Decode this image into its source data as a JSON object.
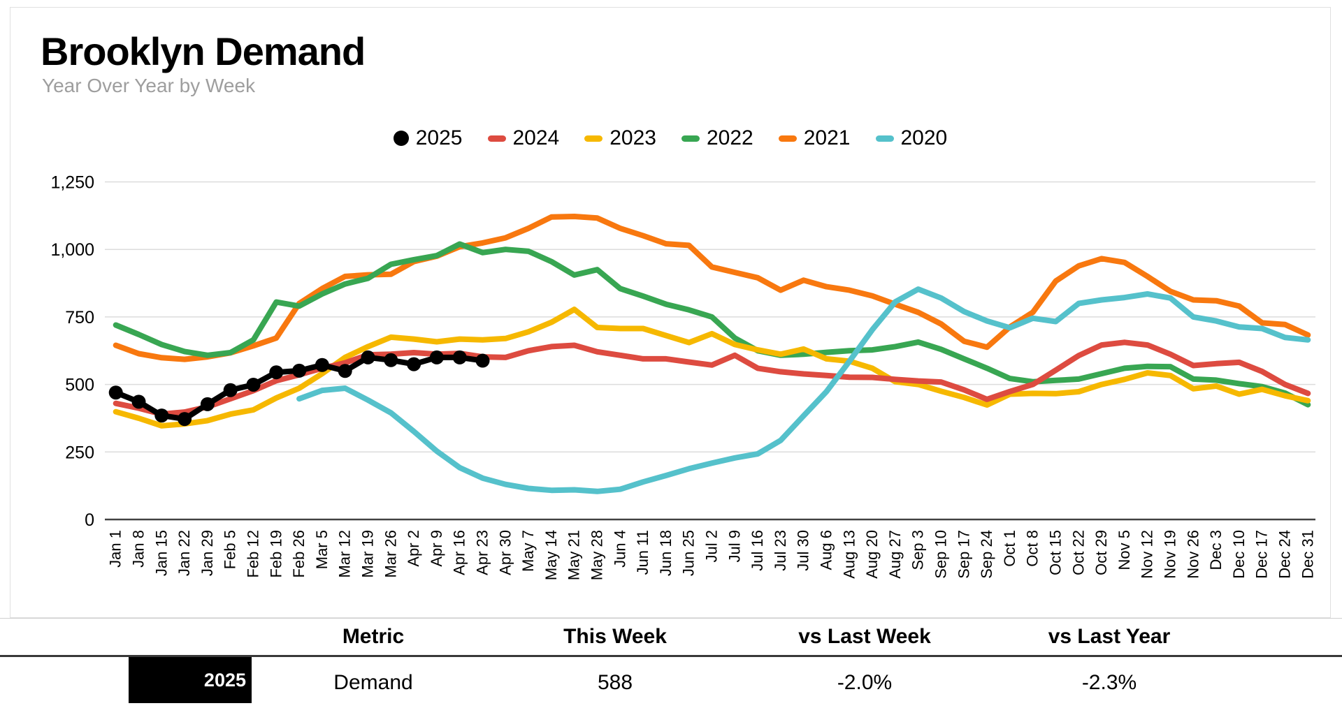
{
  "header": {
    "title": "Brooklyn Demand",
    "subtitle": "Year Over Year by Week"
  },
  "chart_data": {
    "type": "line",
    "title": "Brooklyn Demand",
    "subtitle": "Year Over Year by Week",
    "xlabel": "",
    "ylabel": "",
    "ylim": [
      0,
      1250
    ],
    "grid": true,
    "legend_position": "top",
    "y_ticks": [
      {
        "value": 0,
        "label": "0"
      },
      {
        "value": 250,
        "label": "250"
      },
      {
        "value": 500,
        "label": "500"
      },
      {
        "value": 750,
        "label": "750"
      },
      {
        "value": 1000,
        "label": "1,000"
      },
      {
        "value": 1250,
        "label": "1,250"
      }
    ],
    "x_labels": [
      "Jan 1",
      "Jan 8",
      "Jan 15",
      "Jan 22",
      "Jan 29",
      "Feb 5",
      "Feb 12",
      "Feb 19",
      "Feb 26",
      "Mar 5",
      "Mar 12",
      "Mar 19",
      "Mar 26",
      "Apr 2",
      "Apr 9",
      "Apr 16",
      "Apr 23",
      "Apr 30",
      "May 7",
      "May 14",
      "May 21",
      "May 28",
      "Jun 4",
      "Jun 11",
      "Jun 18",
      "Jun 25",
      "Jul 2",
      "Jul 9",
      "Jul 16",
      "Jul 23",
      "Jul 30",
      "Aug 6",
      "Aug 13",
      "Aug 20",
      "Aug 27",
      "Sep 3",
      "Sep 10",
      "Sep 17",
      "Sep 24",
      "Oct 1",
      "Oct 8",
      "Oct 15",
      "Oct 22",
      "Oct 29",
      "Nov 5",
      "Nov 12",
      "Nov 19",
      "Nov 26",
      "Dec 3",
      "Dec 10",
      "Dec 17",
      "Dec 24",
      "Dec 31"
    ],
    "z_order": [
      "2021",
      "2022",
      "2023",
      "2024",
      "2020",
      "2025"
    ],
    "series": [
      {
        "name": "2025",
        "color": "#000000",
        "marker": "circle",
        "values": [
          470,
          436,
          385,
          372,
          427,
          479,
          499,
          545,
          551,
          572,
          550,
          600,
          590,
          575,
          600,
          600,
          588
        ]
      },
      {
        "name": "2024",
        "color": "#DD4B40",
        "marker": "none",
        "values": [
          430,
          412,
          390,
          398,
          417,
          447,
          477,
          514,
          536,
          560,
          580,
          610,
          612,
          618,
          612,
          615,
          602,
          600,
          625,
          640,
          645,
          621,
          608,
          595,
          595,
          583,
          572,
          608,
          560,
          547,
          539,
          533,
          527,
          526,
          519,
          513,
          509,
          480,
          445,
          474,
          500,
          553,
          607,
          646,
          656,
          646,
          612,
          570,
          577,
          582,
          548,
          500,
          467
        ]
      },
      {
        "name": "2023",
        "color": "#F6B800",
        "marker": "none",
        "values": [
          399,
          375,
          347,
          354,
          366,
          390,
          406,
          450,
          486,
          540,
          600,
          640,
          675,
          668,
          658,
          668,
          665,
          670,
          695,
          730,
          778,
          711,
          707,
          707,
          681,
          655,
          688,
          648,
          628,
          612,
          631,
          595,
          586,
          560,
          510,
          500,
          475,
          452,
          424,
          464,
          467,
          466,
          473,
          500,
          519,
          543,
          533,
          484,
          494,
          464,
          482,
          458,
          440
        ]
      },
      {
        "name": "2022",
        "color": "#38A652",
        "marker": "none",
        "values": [
          720,
          685,
          648,
          622,
          608,
          618,
          665,
          805,
          790,
          835,
          872,
          893,
          945,
          962,
          977,
          1020,
          988,
          1000,
          993,
          955,
          905,
          925,
          855,
          827,
          797,
          776,
          750,
          672,
          625,
          608,
          612,
          619,
          625,
          628,
          640,
          657,
          630,
          595,
          560,
          522,
          510,
          515,
          520,
          540,
          560,
          567,
          566,
          520,
          516,
          503,
          492,
          468,
          425
        ]
      },
      {
        "name": "2021",
        "color": "#F8780F",
        "marker": "none",
        "values": [
          645,
          614,
          599,
          593,
          602,
          617,
          643,
          672,
          800,
          855,
          900,
          906,
          908,
          955,
          975,
          1010,
          1024,
          1043,
          1078,
          1120,
          1122,
          1116,
          1078,
          1051,
          1021,
          1015,
          935,
          915,
          895,
          849,
          886,
          862,
          849,
          828,
          797,
          767,
          724,
          660,
          638,
          713,
          767,
          883,
          939,
          966,
          952,
          900,
          845,
          813,
          810,
          790,
          728,
          722,
          683
        ]
      },
      {
        "name": "2020",
        "color": "#55C1CB",
        "marker": "none",
        "values": [
          null,
          null,
          null,
          null,
          null,
          null,
          null,
          null,
          447,
          478,
          486,
          442,
          395,
          326,
          253,
          192,
          153,
          130,
          115,
          108,
          110,
          104,
          112,
          139,
          163,
          188,
          209,
          228,
          243,
          293,
          384,
          474,
          586,
          703,
          806,
          853,
          820,
          770,
          735,
          710,
          745,
          733,
          800,
          813,
          822,
          835,
          820,
          750,
          735,
          713,
          707,
          674,
          665
        ]
      }
    ]
  },
  "table": {
    "columns": [
      "Metric",
      "This Week",
      "vs Last Week",
      "vs Last Year"
    ],
    "rows": [
      {
        "year": "2025",
        "year_bg": "#000000",
        "metric": "Demand",
        "this_week": "588",
        "vs_last_week": "-2.0%",
        "vs_last_year": "-2.3%"
      }
    ]
  }
}
